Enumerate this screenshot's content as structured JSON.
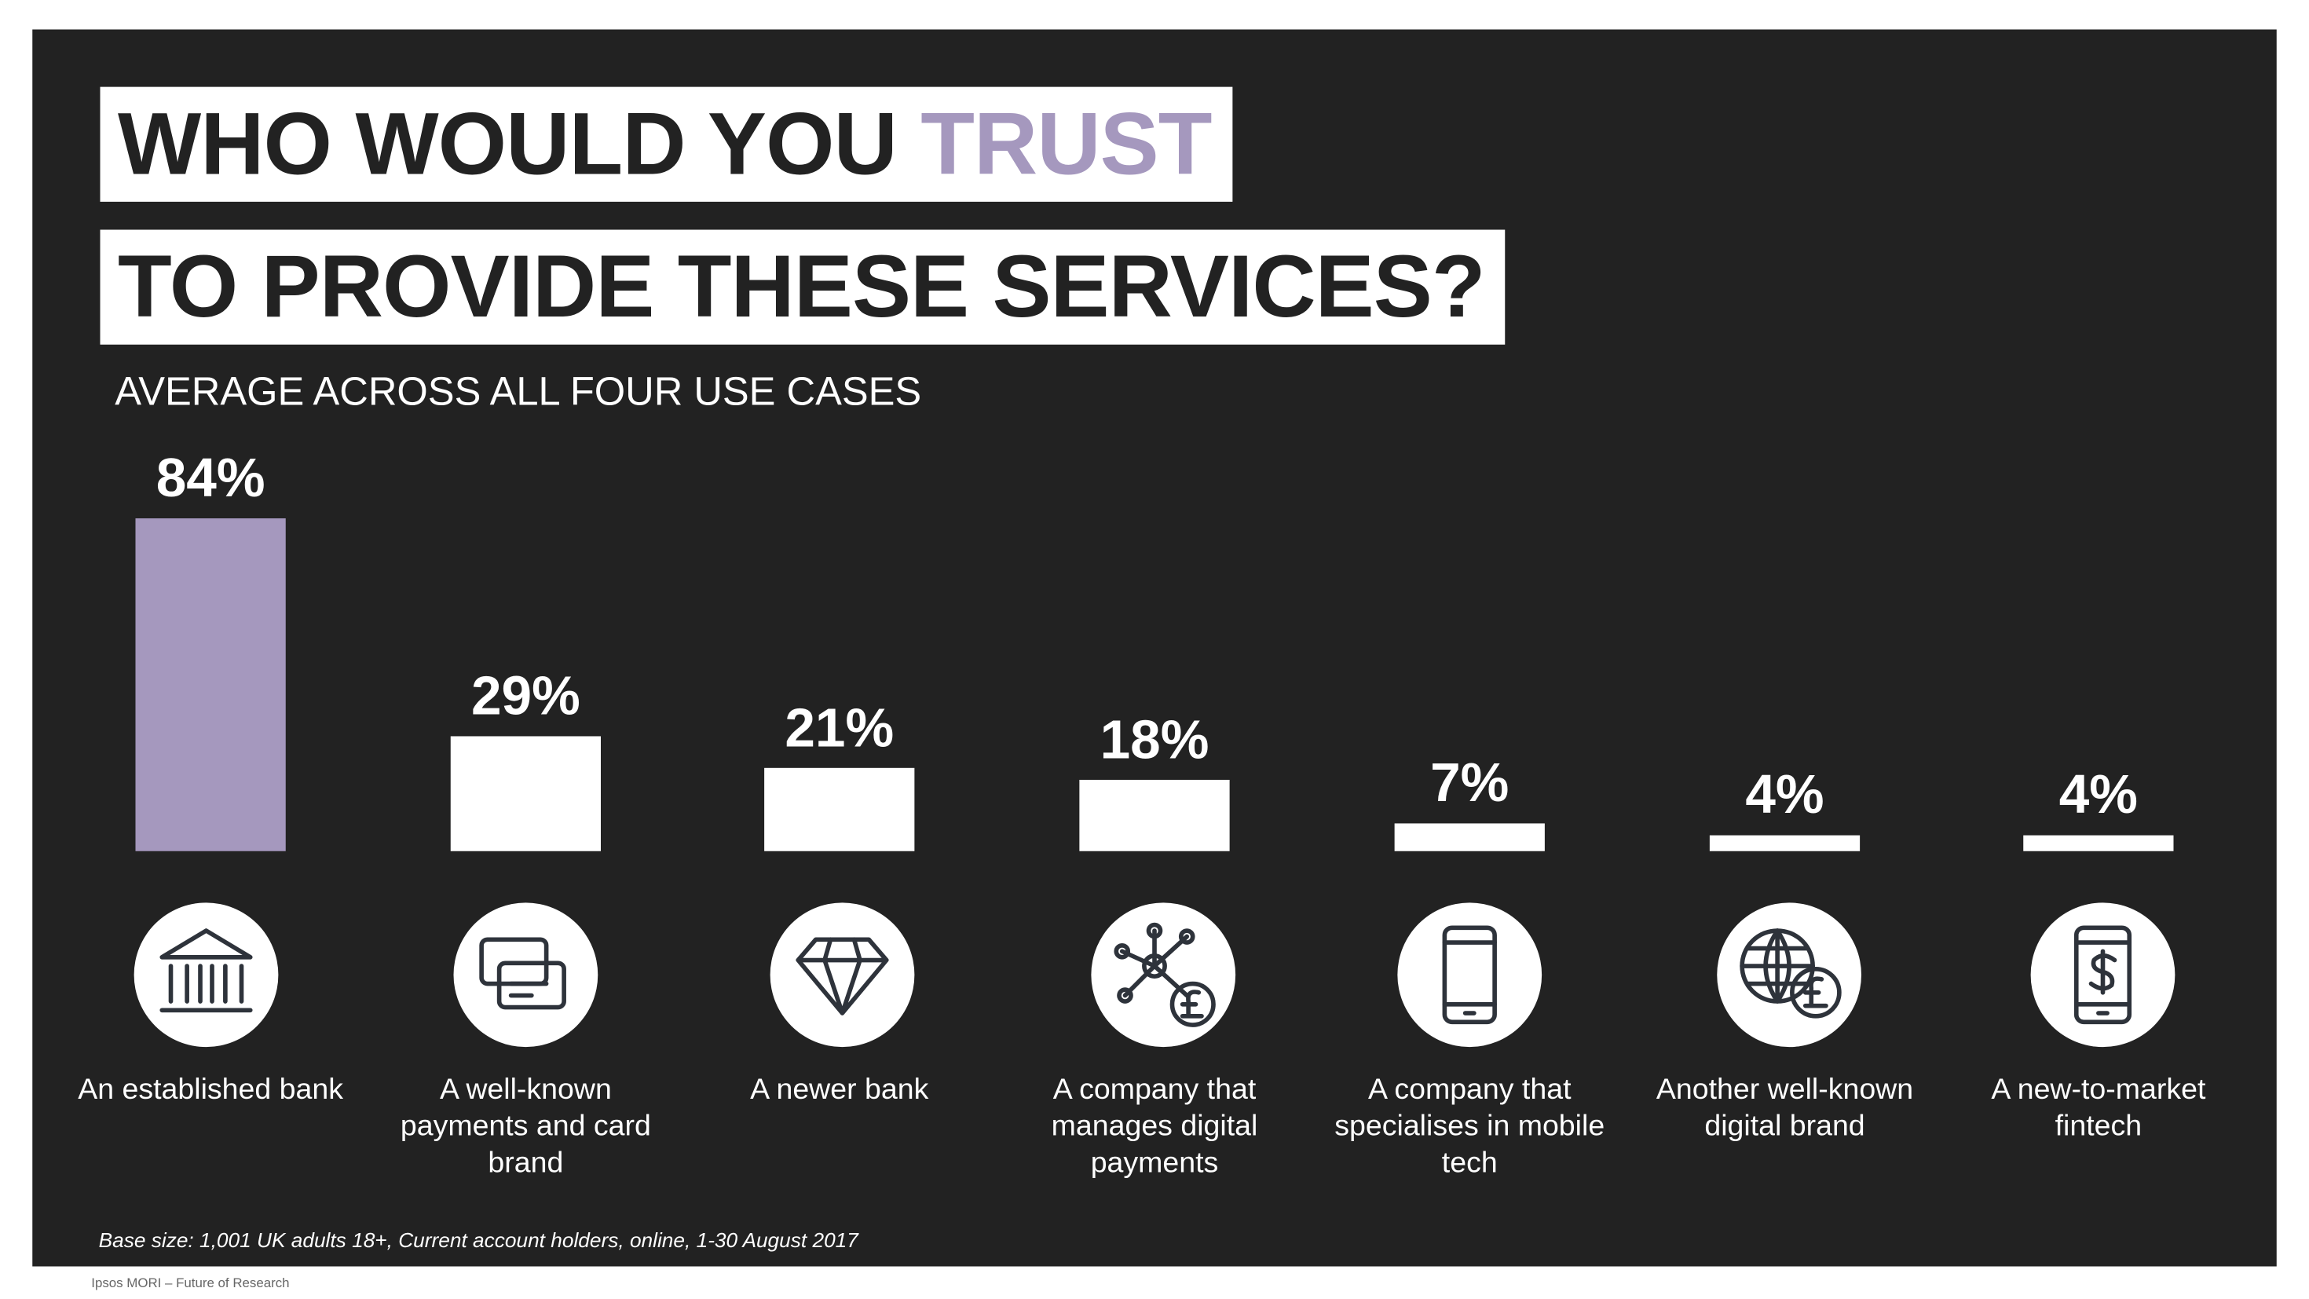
{
  "chart_data": {
    "type": "bar",
    "title_lines": [
      "WHO WOULD YOU",
      "TO PROVIDE THESE SERVICES?"
    ],
    "title_highlight": "TRUST",
    "subtitle": "AVERAGE ACROSS ALL FOUR USE CASES",
    "categories": [
      "An established bank",
      "A well-known payments and card brand",
      "A newer bank",
      "A company that manages digital payments",
      "A company that specialises in mobile tech",
      "Another well-known digital brand",
      "A new-to-market fintech"
    ],
    "values": [
      84,
      29,
      21,
      18,
      7,
      4,
      4
    ],
    "value_labels": [
      "84%",
      "29%",
      "21%",
      "18%",
      "7%",
      "4%",
      "4%"
    ],
    "colors": [
      "#a598be",
      "#ffffff",
      "#ffffff",
      "#ffffff",
      "#ffffff",
      "#ffffff",
      "#ffffff"
    ],
    "note": "Base size: 1,001 UK adults 18+, Current account holders, online, 1-30 August 2017",
    "footer": "Ipsos MORI – Future of Research"
  }
}
